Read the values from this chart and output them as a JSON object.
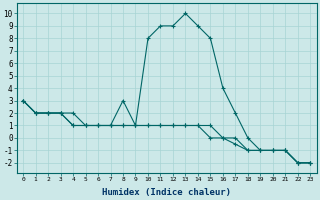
{
  "xlabel": "Humidex (Indice chaleur)",
  "bg_color": "#cce8e8",
  "line_color": "#006666",
  "grid_color": "#a8d4d4",
  "xlim": [
    -0.5,
    23.5
  ],
  "ylim": [
    -2.8,
    10.8
  ],
  "xticks": [
    0,
    1,
    2,
    3,
    4,
    5,
    6,
    7,
    8,
    9,
    10,
    11,
    12,
    13,
    14,
    15,
    16,
    17,
    18,
    19,
    20,
    21,
    22,
    23
  ],
  "yticks": [
    -2,
    -1,
    0,
    1,
    2,
    3,
    4,
    5,
    6,
    7,
    8,
    9,
    10
  ],
  "series": [
    {
      "x": [
        0,
        1,
        2,
        3,
        4,
        5,
        6,
        7,
        8,
        9,
        10,
        11,
        12,
        13,
        14,
        15,
        16,
        17,
        18,
        19,
        20,
        21,
        22,
        23
      ],
      "y": [
        3,
        2,
        2,
        2,
        2,
        1,
        1,
        1,
        3,
        1,
        8,
        9,
        9,
        10,
        9,
        8,
        4,
        2,
        0,
        -1,
        -1,
        -1,
        -2,
        -2
      ]
    },
    {
      "x": [
        0,
        1,
        2,
        3,
        4,
        5,
        6,
        7,
        8,
        9,
        10,
        11,
        12,
        13,
        14,
        15,
        16,
        17,
        18,
        19,
        20,
        21,
        22,
        23
      ],
      "y": [
        3,
        2,
        2,
        2,
        1,
        1,
        1,
        1,
        1,
        1,
        1,
        1,
        1,
        1,
        1,
        1,
        0,
        0,
        -1,
        -1,
        -1,
        -1,
        -2,
        -2
      ]
    },
    {
      "x": [
        0,
        1,
        2,
        3,
        4,
        5,
        6,
        7,
        8,
        9,
        10,
        11,
        12,
        13,
        14,
        15,
        16,
        17,
        18,
        19,
        20,
        21,
        22,
        23
      ],
      "y": [
        3,
        2,
        2,
        2,
        1,
        1,
        1,
        1,
        1,
        1,
        1,
        1,
        1,
        1,
        1,
        0,
        0,
        -0.5,
        -1,
        -1,
        -1,
        -1,
        -2,
        -2
      ]
    }
  ]
}
